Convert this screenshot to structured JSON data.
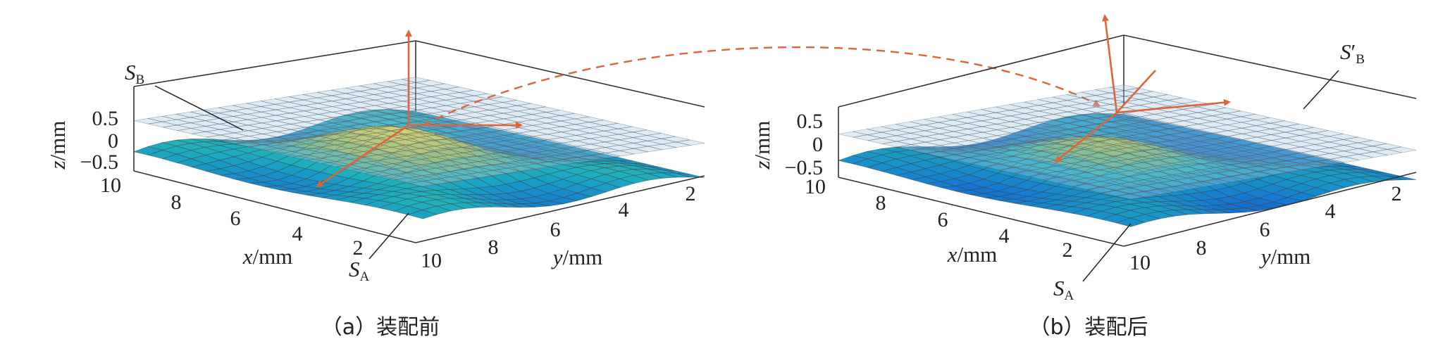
{
  "colors": {
    "arrow": "#e0633a",
    "box": "#333333",
    "mesh": "#3a3a3a",
    "surface_low": "#2c3aa0",
    "surface_mid": "#2aa0d8",
    "surface_high": "#f1d23a",
    "plane": "#9fc8e6"
  },
  "chart_data": [
    {
      "type": "surface",
      "panel": "a",
      "caption": "（a）装配前",
      "xlabel": {
        "var": "x",
        "unit": "/mm"
      },
      "ylabel": {
        "var": "y",
        "unit": "/mm"
      },
      "zlabel": {
        "var": "z",
        "unit": "/mm"
      },
      "xlim": [
        0,
        10
      ],
      "ylim": [
        0,
        10
      ],
      "zlim": [
        -0.5,
        0.5
      ],
      "xticks": [
        "2",
        "4",
        "6",
        "8",
        "10"
      ],
      "yticks": [
        "2",
        "4",
        "6",
        "8",
        "10"
      ],
      "zticks": [
        "0.5",
        "0",
        "−0.5"
      ],
      "surfaces": [
        {
          "name_main": "S",
          "name_sub": "B",
          "name_prime": "",
          "kind": "plane"
        },
        {
          "name_main": "S",
          "name_sub": "A",
          "name_prime": "",
          "kind": "curved"
        }
      ],
      "colormap": "parula"
    },
    {
      "type": "surface",
      "panel": "b",
      "caption": "（b）装配后",
      "xlabel": {
        "var": "x",
        "unit": "/mm"
      },
      "ylabel": {
        "var": "y",
        "unit": "/mm"
      },
      "zlabel": {
        "var": "z",
        "unit": "/mm"
      },
      "xlim": [
        0,
        10
      ],
      "ylim": [
        0,
        10
      ],
      "zlim": [
        -0.5,
        0.5
      ],
      "xticks": [
        "2",
        "4",
        "6",
        "8",
        "10"
      ],
      "yticks": [
        "2",
        "4",
        "6",
        "8",
        "10"
      ],
      "zticks": [
        "0.5",
        "0",
        "−0.5"
      ],
      "surfaces": [
        {
          "name_main": "S",
          "name_sub": "B",
          "name_prime": "′",
          "kind": "plane"
        },
        {
          "name_main": "S",
          "name_sub": "A",
          "name_prime": "",
          "kind": "curved"
        }
      ],
      "colormap": "parula"
    }
  ]
}
